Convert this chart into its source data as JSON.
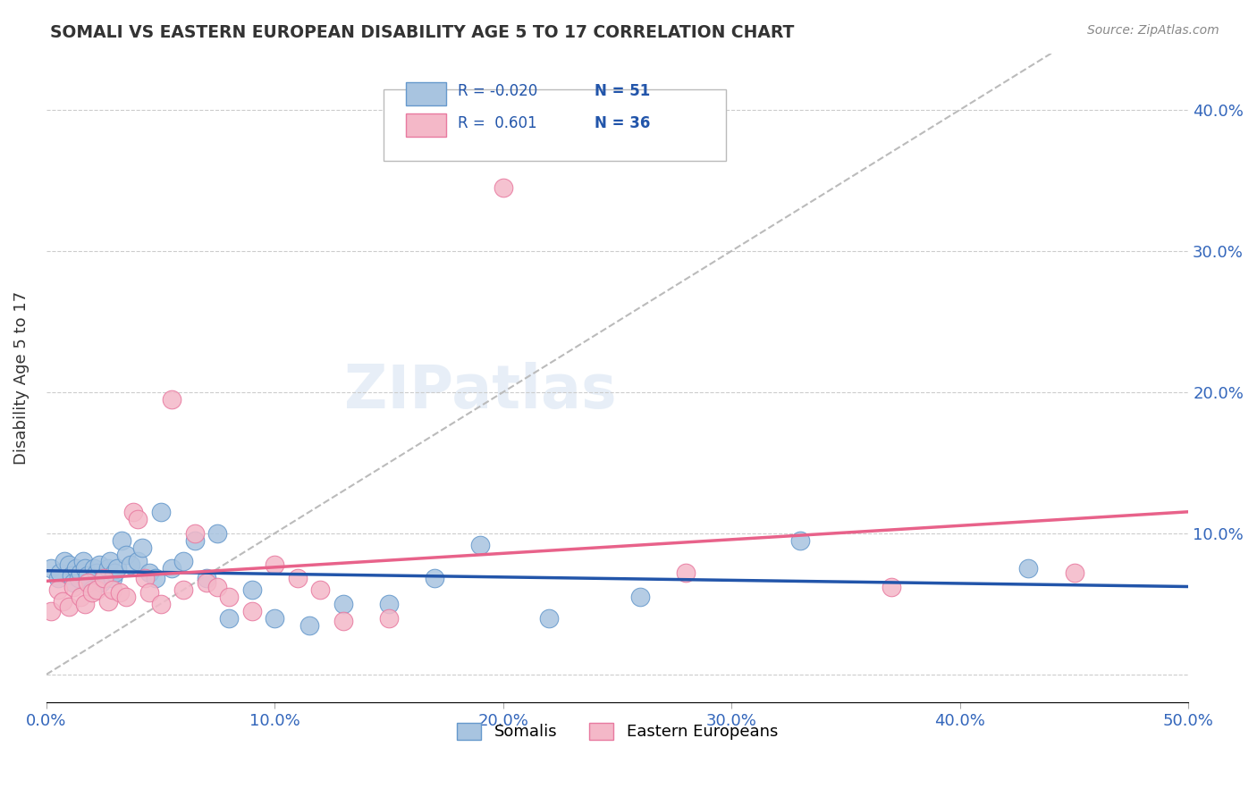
{
  "title": "SOMALI VS EASTERN EUROPEAN DISABILITY AGE 5 TO 17 CORRELATION CHART",
  "source": "Source: ZipAtlas.com",
  "xlabel": "",
  "ylabel": "Disability Age 5 to 17",
  "xlim": [
    0.0,
    0.5
  ],
  "ylim": [
    -0.02,
    0.44
  ],
  "xticks": [
    0.0,
    0.1,
    0.2,
    0.3,
    0.4,
    0.5
  ],
  "yticks": [
    0.0,
    0.1,
    0.2,
    0.3,
    0.4
  ],
  "ytick_labels_right": [
    "",
    "10.0%",
    "20.0%",
    "30.0%",
    "40.0%"
  ],
  "xtick_labels": [
    "0.0%",
    "10.0%",
    "20.0%",
    "30.0%",
    "40.0%",
    "50.0%"
  ],
  "somali_color": "#a8c4e0",
  "eastern_color": "#f4b8c8",
  "somali_edge": "#6699cc",
  "eastern_edge": "#e87aa0",
  "trend_somali_color": "#2255aa",
  "trend_eastern_color": "#e8628a",
  "ref_line_color": "#bbbbbb",
  "legend_r_somali": "R = -0.020",
  "legend_n_somali": "N = 51",
  "legend_r_eastern": "R =  0.601",
  "legend_n_eastern": "N = 36",
  "watermark": "ZIPatlas",
  "somali_x": [
    0.002,
    0.005,
    0.006,
    0.008,
    0.01,
    0.011,
    0.012,
    0.013,
    0.014,
    0.015,
    0.016,
    0.017,
    0.018,
    0.019,
    0.02,
    0.021,
    0.022,
    0.023,
    0.024,
    0.025,
    0.026,
    0.027,
    0.028,
    0.029,
    0.03,
    0.031,
    0.033,
    0.035,
    0.037,
    0.04,
    0.042,
    0.045,
    0.048,
    0.05,
    0.055,
    0.06,
    0.065,
    0.07,
    0.075,
    0.08,
    0.09,
    0.1,
    0.115,
    0.13,
    0.15,
    0.17,
    0.19,
    0.22,
    0.26,
    0.33,
    0.43
  ],
  "somali_y": [
    0.075,
    0.068,
    0.072,
    0.08,
    0.078,
    0.07,
    0.065,
    0.075,
    0.068,
    0.072,
    0.08,
    0.075,
    0.07,
    0.065,
    0.06,
    0.075,
    0.072,
    0.078,
    0.065,
    0.068,
    0.07,
    0.075,
    0.08,
    0.068,
    0.072,
    0.075,
    0.095,
    0.085,
    0.078,
    0.08,
    0.09,
    0.072,
    0.068,
    0.115,
    0.075,
    0.08,
    0.095,
    0.068,
    0.1,
    0.04,
    0.06,
    0.04,
    0.035,
    0.05,
    0.05,
    0.068,
    0.092,
    0.04,
    0.055,
    0.095,
    0.075
  ],
  "eastern_x": [
    0.002,
    0.005,
    0.007,
    0.01,
    0.012,
    0.015,
    0.017,
    0.018,
    0.02,
    0.022,
    0.025,
    0.027,
    0.029,
    0.032,
    0.035,
    0.038,
    0.04,
    0.043,
    0.045,
    0.05,
    0.055,
    0.06,
    0.065,
    0.07,
    0.075,
    0.08,
    0.09,
    0.1,
    0.11,
    0.12,
    0.13,
    0.15,
    0.2,
    0.28,
    0.37,
    0.45
  ],
  "eastern_y": [
    0.045,
    0.06,
    0.052,
    0.048,
    0.062,
    0.055,
    0.05,
    0.065,
    0.058,
    0.06,
    0.068,
    0.052,
    0.06,
    0.058,
    0.055,
    0.115,
    0.11,
    0.068,
    0.058,
    0.05,
    0.195,
    0.06,
    0.1,
    0.065,
    0.062,
    0.055,
    0.045,
    0.078,
    0.068,
    0.06,
    0.038,
    0.04,
    0.345,
    0.072,
    0.062,
    0.072
  ]
}
